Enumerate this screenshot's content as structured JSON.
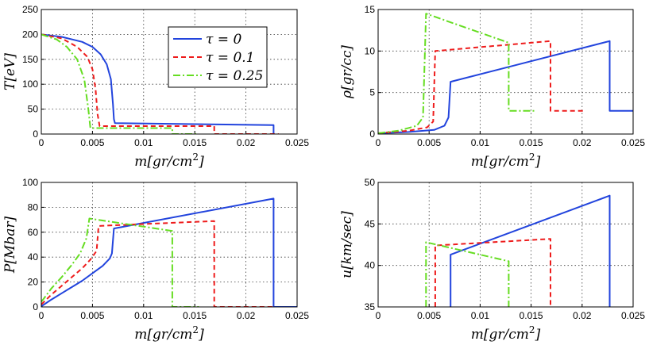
{
  "colors": {
    "tau0": "#2244dd",
    "tau01": "#ee1c1c",
    "tau025": "#66dd22"
  },
  "legend": {
    "placement": "top-right",
    "entries": [
      {
        "label": "τ = 0",
        "color": "#2244dd",
        "dash": "solid"
      },
      {
        "label": "τ = 0.1",
        "color": "#ee1c1c",
        "dash": "dashed"
      },
      {
        "label": "τ = 0.25",
        "color": "#66dd22",
        "dash": "dashdot"
      }
    ]
  },
  "chart_data": [
    {
      "id": "T",
      "type": "line",
      "ylabel_prefix": "T",
      "ylabel_inner": "eV",
      "xlabel": "m[gr/cm2]",
      "xlim": [
        0,
        0.025
      ],
      "ylim": [
        0,
        250
      ],
      "xticks": [
        "0",
        "0.005",
        "0.01",
        "0.015",
        "0.02",
        "0.025"
      ],
      "yticks": [
        "0",
        "50",
        "100",
        "150",
        "200",
        "250"
      ],
      "grid": true,
      "series": [
        {
          "name": "τ = 0",
          "x": [
            0,
            0.002,
            0.004,
            0.005,
            0.0058,
            0.0064,
            0.0068,
            0.007,
            0.0071,
            0.0072,
            0.0227,
            0.0227
          ],
          "y": [
            200,
            195,
            185,
            175,
            160,
            140,
            110,
            60,
            30,
            22,
            18,
            0
          ]
        },
        {
          "name": "τ = 0.1",
          "x": [
            0,
            0.002,
            0.0035,
            0.0045,
            0.005,
            0.0053,
            0.0055,
            0.0057,
            0.0169,
            0.0169,
            0.0232
          ],
          "y": [
            200,
            192,
            175,
            155,
            130,
            90,
            40,
            16,
            16,
            0,
            0
          ]
        },
        {
          "name": "τ = 0.25",
          "x": [
            0,
            0.0015,
            0.0025,
            0.0035,
            0.0042,
            0.0046,
            0.0048,
            0.0128,
            0.0128,
            0.0152
          ],
          "y": [
            200,
            190,
            175,
            150,
            110,
            50,
            12,
            12,
            0,
            0
          ]
        }
      ]
    },
    {
      "id": "rho",
      "type": "line",
      "ylabel_prefix": "ρ",
      "ylabel_inner": "gr/cc",
      "xlabel": "m[gr/cm2]",
      "xlim": [
        0,
        0.025
      ],
      "ylim": [
        0,
        15
      ],
      "xticks": [
        "0",
        "0.005",
        "0.01",
        "0.015",
        "0.02",
        "0.025"
      ],
      "yticks": [
        "0",
        "5",
        "10",
        "15"
      ],
      "grid": true,
      "series": [
        {
          "name": "τ = 0",
          "x": [
            0,
            0.003,
            0.0055,
            0.0065,
            0.0069,
            0.0071,
            0.0227,
            0.0227,
            0.025
          ],
          "y": [
            0.1,
            0.25,
            0.5,
            1.0,
            2.0,
            6.3,
            11.2,
            2.8,
            2.8
          ]
        },
        {
          "name": "τ = 0.1",
          "x": [
            0,
            0.003,
            0.0048,
            0.0054,
            0.0056,
            0.0169,
            0.0169,
            0.0201
          ],
          "y": [
            0.1,
            0.4,
            0.8,
            1.5,
            10.0,
            11.2,
            2.8,
            2.8
          ]
        },
        {
          "name": "τ = 0.25",
          "x": [
            0,
            0.002,
            0.0038,
            0.0044,
            0.0047,
            0.0128,
            0.0128,
            0.0153
          ],
          "y": [
            0.1,
            0.4,
            1.0,
            2.0,
            14.5,
            11.0,
            2.8,
            2.8
          ]
        }
      ]
    },
    {
      "id": "P",
      "type": "line",
      "ylabel_prefix": "P",
      "ylabel_inner": "Mbar",
      "xlabel": "m[gr/cm2]",
      "xlim": [
        0,
        0.025
      ],
      "ylim": [
        0,
        100
      ],
      "xticks": [
        "0",
        "0.005",
        "0.01",
        "0.015",
        "0.02",
        "0.025"
      ],
      "yticks": [
        "0",
        "20",
        "40",
        "60",
        "80",
        "100"
      ],
      "grid": true,
      "series": [
        {
          "name": "τ = 0",
          "x": [
            0,
            0.001,
            0.002,
            0.003,
            0.004,
            0.005,
            0.006,
            0.0067,
            0.0069,
            0.0071,
            0.0227,
            0.0227,
            0.025
          ],
          "y": [
            0.5,
            6,
            11,
            16,
            21,
            27,
            33,
            39,
            43,
            63,
            87,
            0,
            0
          ]
        },
        {
          "name": "τ = 0.1",
          "x": [
            0,
            0.001,
            0.002,
            0.003,
            0.004,
            0.0048,
            0.0054,
            0.0056,
            0.0169,
            0.0169,
            0.0228
          ],
          "y": [
            2,
            10,
            17,
            24,
            31,
            38,
            45,
            65,
            69,
            0,
            0
          ]
        },
        {
          "name": "τ = 0.25",
          "x": [
            0,
            0.001,
            0.002,
            0.003,
            0.0038,
            0.0044,
            0.0047,
            0.0128,
            0.0128,
            0.0154
          ],
          "y": [
            4,
            15,
            24,
            34,
            43,
            55,
            71,
            61,
            0,
            0
          ]
        }
      ]
    },
    {
      "id": "u",
      "type": "line",
      "ylabel_prefix": "u",
      "ylabel_inner": "km/sec",
      "xlabel": "m[gr/cm2]",
      "xlim": [
        0,
        0.025
      ],
      "ylim": [
        35,
        50
      ],
      "xticks": [
        "0",
        "0.005",
        "0.01",
        "0.015",
        "0.02",
        "0.025"
      ],
      "yticks": [
        "35",
        "40",
        "45",
        "50"
      ],
      "grid": true,
      "series": [
        {
          "name": "τ = 0",
          "x": [
            0.0071,
            0.0071,
            0.0227,
            0.0227
          ],
          "y": [
            35,
            41.3,
            48.4,
            35
          ]
        },
        {
          "name": "τ = 0.1",
          "x": [
            0.0056,
            0.0056,
            0.0169,
            0.0169
          ],
          "y": [
            35,
            42.4,
            43.2,
            35
          ]
        },
        {
          "name": "τ = 0.25",
          "x": [
            0.0047,
            0.0047,
            0.0128,
            0.0128
          ],
          "y": [
            35,
            42.8,
            40.5,
            35
          ]
        }
      ]
    }
  ]
}
